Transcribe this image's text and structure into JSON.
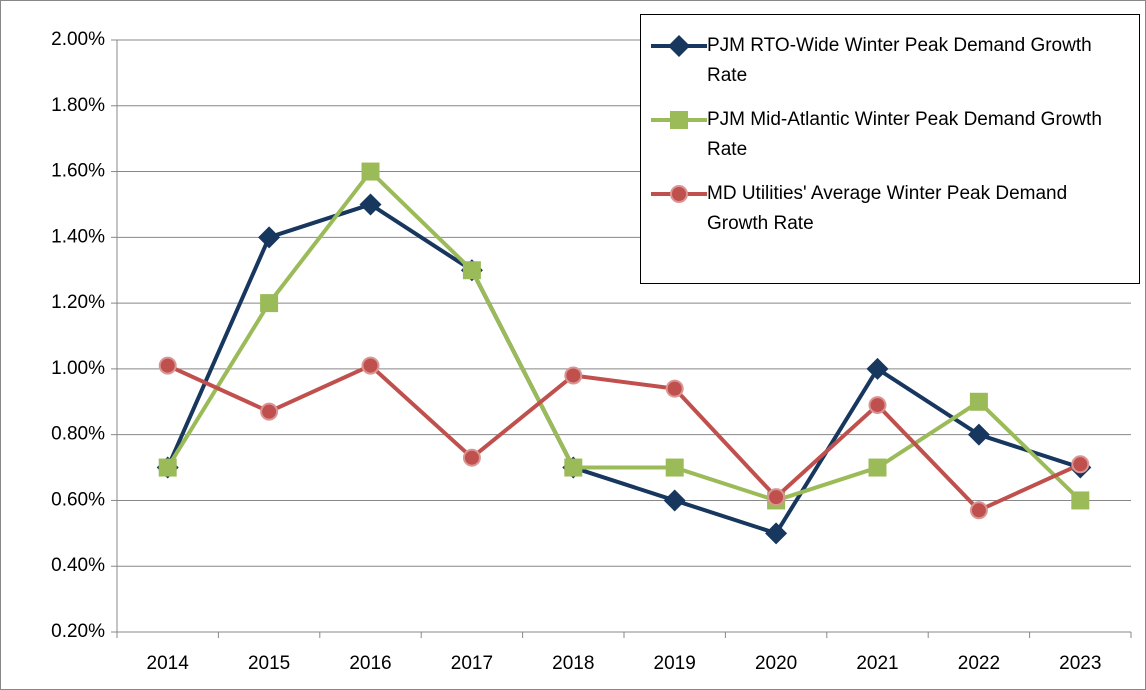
{
  "chart_data": {
    "type": "line",
    "categories": [
      "2014",
      "2015",
      "2016",
      "2017",
      "2018",
      "2019",
      "2020",
      "2021",
      "2022",
      "2023"
    ],
    "series": [
      {
        "name": "PJM RTO-Wide Winter Peak Demand Growth Rate",
        "color": "#17375e",
        "marker": "diamond",
        "values": [
          0.7,
          1.4,
          1.5,
          1.3,
          0.7,
          0.6,
          0.5,
          1.0,
          0.8,
          0.7
        ]
      },
      {
        "name": "PJM Mid-Atlantic Winter Peak Demand Growth Rate",
        "color": "#9bbb59",
        "marker": "square",
        "values": [
          0.7,
          1.2,
          1.6,
          1.3,
          0.7,
          0.7,
          0.6,
          0.7,
          0.9,
          0.6
        ]
      },
      {
        "name": "MD Utilities' Average Winter Peak Demand Growth Rate",
        "color": "#c0504d",
        "marker": "circle",
        "values": [
          1.01,
          0.87,
          1.01,
          0.73,
          0.98,
          0.94,
          0.61,
          0.89,
          0.57,
          0.71
        ]
      }
    ],
    "ylim": [
      0.2,
      2.0
    ],
    "yticks": [
      {
        "value": 0.2,
        "label": "0.20%"
      },
      {
        "value": 0.4,
        "label": "0.40%"
      },
      {
        "value": 0.6,
        "label": "0.60%"
      },
      {
        "value": 0.8,
        "label": "0.80%"
      },
      {
        "value": 1.0,
        "label": "1.00%"
      },
      {
        "value": 1.2,
        "label": "1.20%"
      },
      {
        "value": 1.4,
        "label": "1.40%"
      },
      {
        "value": 1.6,
        "label": "1.60%"
      },
      {
        "value": 1.8,
        "label": "1.80%"
      },
      {
        "value": 2.0,
        "label": "2.00%"
      }
    ],
    "grid": true,
    "legend": "top-right"
  }
}
